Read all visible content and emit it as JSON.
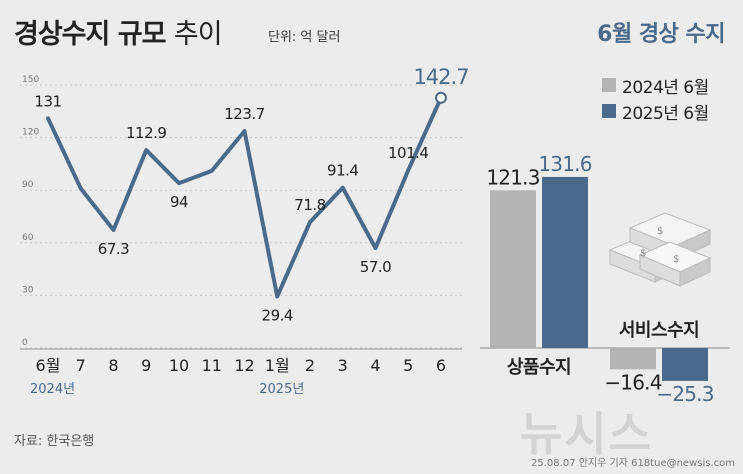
{
  "header": {
    "title_bold": "경상수지 규모",
    "title_light": "추이",
    "unit": "단위: 억 달러",
    "right_title": "6월 경상 수지"
  },
  "legend": [
    {
      "label": "2024년 6월",
      "color": "#b3b3b3"
    },
    {
      "label": "2025년 6월",
      "color": "#4a6a8c"
    }
  ],
  "source": "자료: 한국은행",
  "credit": "25.08.07 안지우 기자 618tue@newsis.com",
  "watermark": "뉴시스",
  "chart_data": [
    {
      "type": "line",
      "categories": [
        "6월",
        "7",
        "8",
        "9",
        "10",
        "11",
        "12",
        "1월",
        "2",
        "3",
        "4",
        "5",
        "6"
      ],
      "year_labels": [
        {
          "index": 0,
          "text": "2024년"
        },
        {
          "index": 7,
          "text": "2025년"
        }
      ],
      "values": [
        131,
        91,
        67.3,
        112.9,
        94,
        101,
        123.7,
        29.4,
        71.8,
        91.4,
        57.0,
        101.4,
        142.7
      ],
      "data_labels": [
        "131",
        "",
        "67.3",
        "112.9",
        "94",
        "",
        "123.7",
        "29.4",
        "71.8",
        "91.4",
        "57.0",
        "101.4",
        "142.7"
      ],
      "yticks": [
        "0",
        "30",
        "60",
        "90",
        "120",
        "150"
      ],
      "ylim": [
        0,
        150
      ],
      "grid": true,
      "color": "#4a6a8c"
    },
    {
      "type": "bar",
      "categories": [
        "상품수지",
        "서비스수지"
      ],
      "series": [
        {
          "name": "2024년 6월",
          "values": [
            121.3,
            -16.4
          ],
          "labels": [
            "121.3",
            "−16.4"
          ],
          "color": "#b3b3b3"
        },
        {
          "name": "2025년 6월",
          "values": [
            131.6,
            -25.3
          ],
          "labels": [
            "131.6",
            "−25.3"
          ],
          "color": "#4a6a8c"
        }
      ]
    }
  ]
}
